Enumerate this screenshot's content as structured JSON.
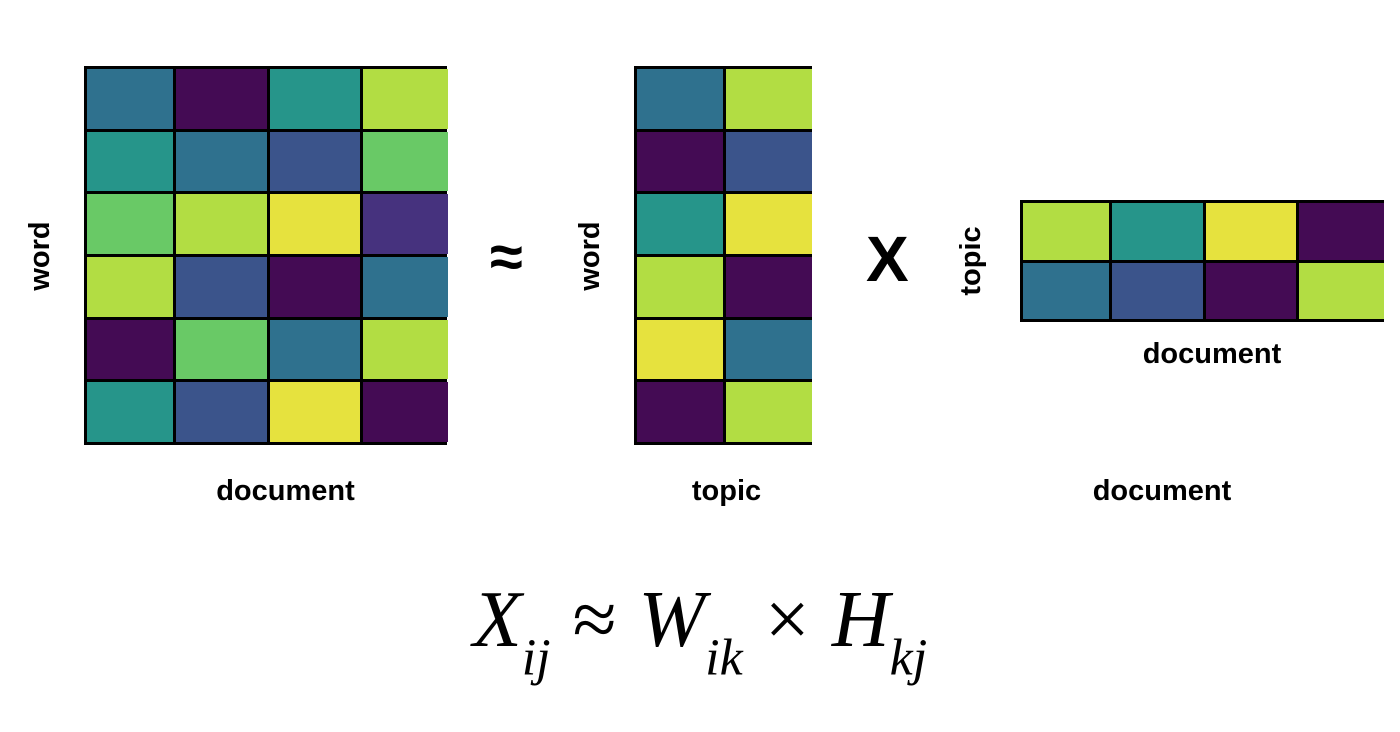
{
  "palette": {
    "a": "#2f718e",
    "b": "#440b54",
    "c": "#26958a",
    "d": "#b2dd43",
    "e": "#3b548b",
    "f": "#69c966",
    "g": "#e6e23e",
    "h": "#46327e"
  },
  "matrix_x": {
    "row_label": "word",
    "col_label": "document",
    "cells": [
      [
        "a",
        "b",
        "c",
        "d"
      ],
      [
        "c",
        "a",
        "e",
        "f"
      ],
      [
        "f",
        "d",
        "g",
        "h"
      ],
      [
        "d",
        "e",
        "b",
        "a"
      ],
      [
        "b",
        "f",
        "a",
        "d"
      ],
      [
        "c",
        "e",
        "g",
        "b"
      ]
    ]
  },
  "approx_symbol": "≈",
  "matrix_w": {
    "row_label": "word",
    "col_label": "topic",
    "cells": [
      [
        "a",
        "d"
      ],
      [
        "b",
        "e"
      ],
      [
        "c",
        "g"
      ],
      [
        "d",
        "b"
      ],
      [
        "g",
        "a"
      ],
      [
        "b",
        "d"
      ]
    ]
  },
  "times_symbol": "X",
  "matrix_h": {
    "row_label": "topic",
    "col_label": "document",
    "cells": [
      [
        "d",
        "c",
        "g",
        "b"
      ],
      [
        "a",
        "e",
        "b",
        "d"
      ]
    ]
  },
  "bottom_label": "document",
  "formula": {
    "x": "X",
    "x_sub": "ij",
    "approx": "≈",
    "w": "W",
    "w_sub": "ik",
    "times": "×",
    "h": "H",
    "h_sub": "kj"
  }
}
